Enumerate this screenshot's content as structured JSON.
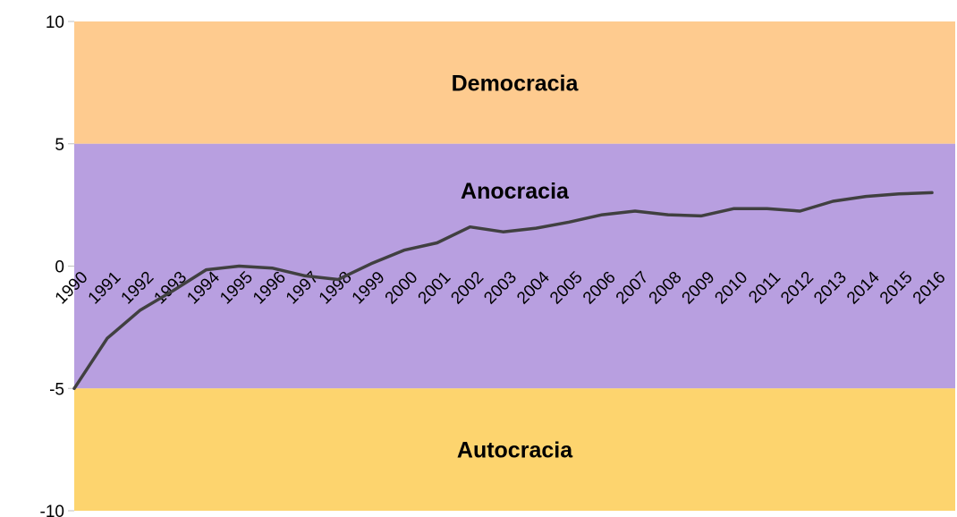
{
  "chart_data": {
    "type": "line",
    "categories": [
      "1990",
      "1991",
      "1992",
      "1993",
      "1994",
      "1995",
      "1996",
      "1997",
      "1998",
      "1999",
      "2000",
      "2001",
      "2002",
      "2003",
      "2004",
      "2005",
      "2006",
      "2007",
      "2008",
      "2009",
      "2010",
      "2011",
      "2012",
      "2013",
      "2014",
      "2015",
      "2016"
    ],
    "series": [
      {
        "color": "#404040",
        "values": [
          -5,
          -2.95,
          -1.8,
          -1.0,
          -0.15,
          0.0,
          -0.08,
          -0.4,
          -0.55,
          0.1,
          0.65,
          0.95,
          1.6,
          1.4,
          1.55,
          1.8,
          2.1,
          2.25,
          2.1,
          2.05,
          2.35,
          2.35,
          2.25,
          2.65,
          2.85,
          2.95,
          3.0
        ]
      }
    ],
    "bands": [
      {
        "label": "Democracia",
        "from": 5,
        "to": 10,
        "color": "#fecb8f"
      },
      {
        "label": "Anocracia",
        "from": -5,
        "to": 5,
        "color": "#b89fe0"
      },
      {
        "label": "Autocracia",
        "from": -10,
        "to": -5,
        "color": "#fdd46e"
      }
    ],
    "ylim": [
      -10,
      10
    ],
    "yticks": [
      -10,
      -5,
      0,
      5,
      10
    ]
  }
}
